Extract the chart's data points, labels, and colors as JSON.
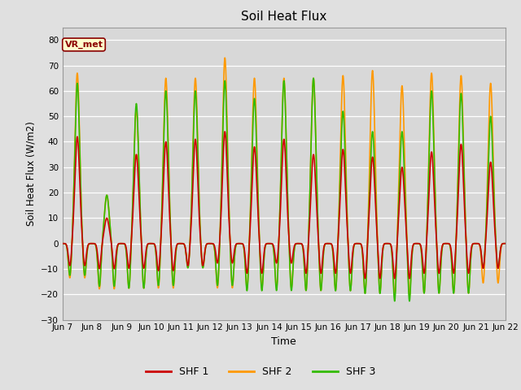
{
  "title": "Soil Heat Flux",
  "xlabel": "Time",
  "ylabel": "Soil Heat Flux (W/m2)",
  "ylim": [
    -30,
    85
  ],
  "yticks": [
    -30,
    -20,
    -10,
    0,
    10,
    20,
    30,
    40,
    50,
    60,
    70,
    80
  ],
  "xtick_labels": [
    "Jun 7",
    "Jun 8",
    "Jun 9",
    "Jun 10",
    "Jun 11",
    "Jun 12",
    "Jun 13",
    "Jun 14",
    "Jun 15",
    "Jun 16",
    "Jun 17",
    "Jun 18",
    "Jun 19",
    "Jun 20",
    "Jun 21",
    "Jun 22"
  ],
  "color_shf1": "#cc0000",
  "color_shf2": "#ff9900",
  "color_shf3": "#33bb00",
  "legend_label1": "SHF 1",
  "legend_label2": "SHF 2",
  "legend_label3": "SHF 3",
  "annotation_text": "VR_met",
  "background_color": "#e0e0e0",
  "plot_bg_color": "#d8d8d8",
  "n_days": 15,
  "peak_shf1": [
    42,
    10,
    35,
    40,
    41,
    44,
    38,
    41,
    35,
    37,
    34,
    30,
    36,
    39,
    32
  ],
  "peak_shf2": [
    67,
    19,
    53,
    65,
    65,
    73,
    65,
    65,
    65,
    66,
    68,
    62,
    67,
    66,
    63
  ],
  "peak_shf3": [
    63,
    19,
    55,
    60,
    60,
    64,
    57,
    64,
    65,
    52,
    44,
    44,
    60,
    59,
    50
  ],
  "trough_shf1": [
    -9,
    -10,
    -10,
    -11,
    -9,
    -8,
    -12,
    -8,
    -12,
    -12,
    -14,
    -14,
    -12,
    -12,
    -10
  ],
  "trough_shf2": [
    -14,
    -18,
    -18,
    -18,
    -10,
    -18,
    -18,
    -18,
    -19,
    -19,
    -20,
    -21,
    -20,
    -20,
    -16
  ],
  "trough_shf3": [
    -13,
    -17,
    -18,
    -17,
    -10,
    -17,
    -19,
    -19,
    -19,
    -19,
    -20,
    -23,
    -20,
    -20,
    -10
  ]
}
